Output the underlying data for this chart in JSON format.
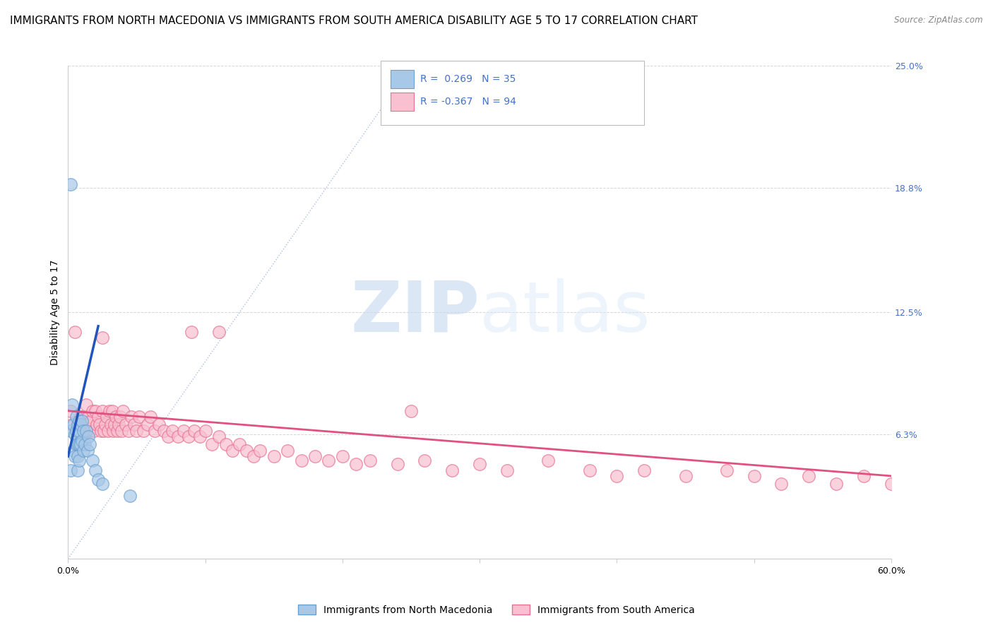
{
  "title": "IMMIGRANTS FROM NORTH MACEDONIA VS IMMIGRANTS FROM SOUTH AMERICA DISABILITY AGE 5 TO 17 CORRELATION CHART",
  "source": "Source: ZipAtlas.com",
  "ylabel": "Disability Age 5 to 17",
  "xlim": [
    0.0,
    0.6
  ],
  "ylim": [
    0.0,
    0.25
  ],
  "ytick_labels_right": [
    "25.0%",
    "18.8%",
    "12.5%",
    "6.3%"
  ],
  "ytick_values_right": [
    0.25,
    0.188,
    0.125,
    0.063
  ],
  "grid_color": "#cccccc",
  "background_color": "#ffffff",
  "diagonal_color": "#aabde0",
  "watermark_zip": "ZIP",
  "watermark_atlas": "atlas",
  "series1": {
    "name": "Immigrants from North Macedonia",
    "color": "#a8c8e8",
    "edge_color": "#6aa0d0",
    "R": 0.269,
    "N": 35,
    "scatter_x": [
      0.002,
      0.002,
      0.002,
      0.003,
      0.004,
      0.004,
      0.005,
      0.005,
      0.006,
      0.006,
      0.006,
      0.007,
      0.007,
      0.007,
      0.007,
      0.008,
      0.008,
      0.008,
      0.008,
      0.009,
      0.009,
      0.01,
      0.01,
      0.011,
      0.011,
      0.012,
      0.013,
      0.014,
      0.015,
      0.016,
      0.018,
      0.02,
      0.022,
      0.025,
      0.045
    ],
    "scatter_y": [
      0.19,
      0.065,
      0.045,
      0.078,
      0.068,
      0.055,
      0.063,
      0.052,
      0.072,
      0.065,
      0.058,
      0.068,
      0.058,
      0.052,
      0.045,
      0.07,
      0.065,
      0.058,
      0.05,
      0.068,
      0.058,
      0.07,
      0.06,
      0.065,
      0.055,
      0.058,
      0.065,
      0.055,
      0.062,
      0.058,
      0.05,
      0.045,
      0.04,
      0.038,
      0.032
    ],
    "trend_x": [
      0.0,
      0.022
    ],
    "trend_y_start": 0.052,
    "trend_y_end": 0.118,
    "trend_color": "#2255bb"
  },
  "series2": {
    "name": "Immigrants from South America",
    "color": "#f8c0d0",
    "edge_color": "#e87090",
    "R": -0.367,
    "N": 94,
    "scatter_x": [
      0.002,
      0.003,
      0.005,
      0.007,
      0.008,
      0.009,
      0.01,
      0.011,
      0.012,
      0.013,
      0.014,
      0.015,
      0.016,
      0.017,
      0.018,
      0.019,
      0.02,
      0.021,
      0.022,
      0.023,
      0.024,
      0.025,
      0.026,
      0.027,
      0.028,
      0.029,
      0.03,
      0.031,
      0.032,
      0.033,
      0.034,
      0.035,
      0.036,
      0.037,
      0.038,
      0.039,
      0.04,
      0.042,
      0.044,
      0.046,
      0.048,
      0.05,
      0.052,
      0.055,
      0.058,
      0.06,
      0.063,
      0.066,
      0.07,
      0.073,
      0.076,
      0.08,
      0.084,
      0.088,
      0.092,
      0.096,
      0.1,
      0.105,
      0.11,
      0.115,
      0.12,
      0.125,
      0.13,
      0.135,
      0.14,
      0.15,
      0.16,
      0.17,
      0.18,
      0.19,
      0.2,
      0.21,
      0.22,
      0.24,
      0.26,
      0.28,
      0.3,
      0.32,
      0.35,
      0.38,
      0.4,
      0.42,
      0.45,
      0.48,
      0.5,
      0.52,
      0.54,
      0.56,
      0.58,
      0.6,
      0.025,
      0.09,
      0.11,
      0.25
    ],
    "scatter_y": [
      0.075,
      0.068,
      0.115,
      0.068,
      0.065,
      0.072,
      0.072,
      0.068,
      0.065,
      0.078,
      0.068,
      0.072,
      0.065,
      0.07,
      0.075,
      0.065,
      0.075,
      0.068,
      0.072,
      0.068,
      0.065,
      0.075,
      0.065,
      0.068,
      0.072,
      0.065,
      0.075,
      0.068,
      0.075,
      0.065,
      0.068,
      0.072,
      0.065,
      0.068,
      0.072,
      0.065,
      0.075,
      0.068,
      0.065,
      0.072,
      0.068,
      0.065,
      0.072,
      0.065,
      0.068,
      0.072,
      0.065,
      0.068,
      0.065,
      0.062,
      0.065,
      0.062,
      0.065,
      0.062,
      0.065,
      0.062,
      0.065,
      0.058,
      0.062,
      0.058,
      0.055,
      0.058,
      0.055,
      0.052,
      0.055,
      0.052,
      0.055,
      0.05,
      0.052,
      0.05,
      0.052,
      0.048,
      0.05,
      0.048,
      0.05,
      0.045,
      0.048,
      0.045,
      0.05,
      0.045,
      0.042,
      0.045,
      0.042,
      0.045,
      0.042,
      0.038,
      0.042,
      0.038,
      0.042,
      0.038,
      0.112,
      0.115,
      0.115,
      0.075
    ],
    "trend_x": [
      0.0,
      0.6
    ],
    "trend_y_start": 0.075,
    "trend_y_end": 0.042,
    "trend_color": "#e05080"
  },
  "title_fontsize": 11,
  "axis_label_fontsize": 10,
  "tick_fontsize": 9
}
